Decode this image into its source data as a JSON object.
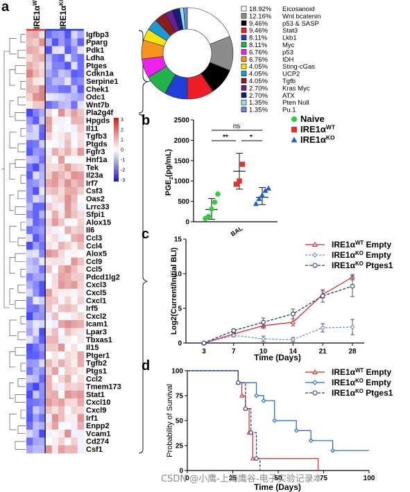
{
  "panels": {
    "a": "a",
    "b": "b",
    "c": "c",
    "d": "d"
  },
  "heatmap": {
    "group_labels": [
      "IRE1α",
      "IRE1α"
    ],
    "group_superscripts": [
      "WT",
      "KO"
    ],
    "genes": [
      "Igfbp3",
      "Pparg",
      "Pdk1",
      "Ldha",
      "Ptges",
      "Cdkn1a",
      "Serpine1",
      "Chek1",
      "Odc1",
      "Wnt7b",
      "Pla2g4f",
      "Hpgds",
      "Il11",
      "Tgfb3",
      "Ptgds",
      "Fgfr3",
      "Hnf1a",
      "Tek",
      "Il23a",
      "Irf7",
      "Csf3",
      "Oas2",
      "Lrrc33",
      "Sfpi1",
      "Alox15",
      "Il6",
      "Ccl3",
      "Ccl4",
      "Alox5",
      "Ccl9",
      "Ccl5",
      "Pdcd1lg2",
      "Cxcl3",
      "Cxcl5",
      "Cxcl1",
      "Irf5",
      "Cxcl2",
      "Icam1",
      "Lpar3",
      "Tbxas1",
      "Il15",
      "Ptger1",
      "Tgfb2",
      "Ptgs1",
      "Ccl2",
      "Tmem173",
      "Stat1",
      "Cxcl10",
      "Cxcl9",
      "Irf1",
      "Enpp2",
      "Vcam1",
      "Cd274",
      "Csf1"
    ],
    "colorbar_ticks": [
      "3",
      "2",
      "1",
      "0",
      "-1",
      "-2",
      "-3"
    ]
  },
  "chart_data": [
    {
      "type": "pie",
      "title": "",
      "style": "donut",
      "labels": [
        "Eicosanoid",
        "Wnt bcatenin",
        "p53 & SASP",
        "Stat3",
        "Lkb1",
        "Myc",
        "p53",
        "IDH",
        "Sting-cGas",
        "UCP2",
        "Tgfb",
        "Kras Myc",
        "ATX",
        "Pten Null",
        "Pu.1"
      ],
      "values": [
        18.92,
        12.16,
        9.46,
        9.46,
        8.11,
        8.11,
        6.76,
        6.76,
        4.05,
        4.05,
        4.05,
        2.7,
        2.7,
        1.35,
        1.35
      ],
      "value_labels": [
        "18.92%",
        "12.16%",
        "9.46%",
        "9.46%",
        "8.11%",
        "8.11%",
        "6.76%",
        "6.76%",
        "4.05%",
        "4.05%",
        "4.05%",
        "2.70%",
        "2.70%",
        "1.35%",
        "1.35%"
      ],
      "colors": [
        "#ffffff",
        "#8c8c8c",
        "#000000",
        "#ee1c25",
        "#1f3fd6",
        "#21b24b",
        "#ee22ee",
        "#f7941d",
        "#f5e50c",
        "#1d9ad6",
        "#8a1c1c",
        "#6b1f8f",
        "#1a1a7a",
        "#8ee6f0",
        "#6a8bd6"
      ]
    },
    {
      "type": "scatter",
      "title": "",
      "xlabel": "",
      "ylabel": "PGE2(pg/mL)",
      "ylabel_main": "PGE",
      "ylabel_sub": "2",
      "ylabel_rest": "(pg/mL)",
      "x_tick": "BAL",
      "ylim": [
        0,
        2500
      ],
      "yticks": [
        "0",
        "500",
        "1000",
        "1500",
        "2000",
        "2500"
      ],
      "yvals": [
        0,
        500,
        1000,
        1500,
        2000,
        2500
      ],
      "series": [
        {
          "name": "Naive",
          "name_sup": "",
          "color": "#2ecc40",
          "marker": "circle",
          "values": [
            80,
            130,
            310,
            480,
            680
          ],
          "mean": 300,
          "err_lo": 60,
          "err_hi": 570
        },
        {
          "name": "IRE1α",
          "name_sup": "WT",
          "color": "#e8312a",
          "marker": "square",
          "values": [
            920,
            1000,
            1410
          ],
          "mean": 1240,
          "err_lo": 800,
          "err_hi": 1680
        },
        {
          "name": "IRE1α",
          "name_sup": "KO",
          "color": "#1d5fd6",
          "marker": "triangle",
          "values": [
            440,
            560,
            650,
            760,
            820
          ],
          "mean": 600,
          "err_lo": 420,
          "err_hi": 840
        }
      ],
      "significance": [
        {
          "label": "ns"
        },
        {
          "label": "**"
        },
        {
          "label": "*"
        }
      ]
    },
    {
      "type": "line",
      "title": "",
      "xlabel": "Time (Days)",
      "ylabel": "Log2(Current/Initial BLI)",
      "x": [
        3,
        7,
        10,
        14,
        21,
        28
      ],
      "ylim": [
        0,
        15
      ],
      "yticks": [
        0,
        5,
        10,
        15
      ],
      "series": [
        {
          "name": "IRE1α",
          "name_sup": "WT",
          "suffix": " Empty",
          "color": "#d62728",
          "marker": "triangle",
          "dash": "",
          "values": [
            0,
            1.3,
            2.5,
            3.0,
            7.0,
            9.5
          ],
          "errors": [
            0,
            0.2,
            0.4,
            0.5,
            0.5,
            0.4
          ]
        },
        {
          "name": "IRE1α",
          "name_sup": "KO",
          "suffix": " Empty",
          "color": "#6a8bd6",
          "marker": "diamond",
          "dash": "3,2",
          "values": [
            0,
            1.1,
            0.6,
            0.5,
            2.2,
            2.3
          ],
          "errors": [
            0,
            0.2,
            0.4,
            0.3,
            0.6,
            1.1
          ]
        },
        {
          "name": "IRE1α",
          "name_sup": "KO",
          "suffix": " Ptges1",
          "color": "#1f3a7a",
          "marker": "circle",
          "dash": "4,2",
          "values": [
            0,
            1.8,
            3.0,
            4.2,
            6.8,
            8.2
          ],
          "errors": [
            0,
            0.2,
            0.6,
            0.7,
            0.9,
            1.5
          ]
        }
      ]
    },
    {
      "type": "line",
      "title": "",
      "xlabel": "Time (Days)",
      "ylabel": "Probability of Survival",
      "xlim": [
        0,
        100
      ],
      "xticks": [
        0,
        25,
        50,
        75,
        100
      ],
      "ylim": [
        0,
        100
      ],
      "yticks": [
        0,
        25,
        50,
        75,
        100
      ],
      "series": [
        {
          "name": "IRE1α",
          "name_sup": "WT",
          "suffix": " Empty",
          "color": "#d62728",
          "dash": "",
          "steps": [
            [
              0,
              100
            ],
            [
              28,
              100
            ],
            [
              28,
              88
            ],
            [
              30,
              88
            ],
            [
              30,
              75
            ],
            [
              32,
              75
            ],
            [
              32,
              62
            ],
            [
              34,
              62
            ],
            [
              34,
              38
            ],
            [
              36,
              38
            ],
            [
              36,
              12
            ],
            [
              72,
              12
            ],
            [
              72,
              0
            ]
          ]
        },
        {
          "name": "IRE1α",
          "name_sup": "KO",
          "suffix": " Empty",
          "color": "#1d5fd6",
          "dash": "",
          "steps": [
            [
              0,
              100
            ],
            [
              28,
              100
            ],
            [
              28,
              88
            ],
            [
              38,
              88
            ],
            [
              38,
              75
            ],
            [
              42,
              75
            ],
            [
              42,
              70
            ],
            [
              48,
              70
            ],
            [
              48,
              50
            ],
            [
              60,
              50
            ],
            [
              60,
              40
            ],
            [
              68,
              40
            ],
            [
              68,
              30
            ],
            [
              80,
              30
            ],
            [
              80,
              20
            ],
            [
              100,
              20
            ]
          ]
        },
        {
          "name": "IRE1α",
          "name_sup": "KO",
          "suffix": " Ptges1",
          "color": "#1f3a7a",
          "dash": "4,2",
          "steps": [
            [
              0,
              100
            ],
            [
              28,
              100
            ],
            [
              28,
              88
            ],
            [
              32,
              88
            ],
            [
              32,
              62
            ],
            [
              35,
              62
            ],
            [
              35,
              38
            ],
            [
              38,
              38
            ],
            [
              38,
              12
            ],
            [
              40,
              12
            ],
            [
              40,
              0
            ]
          ]
        }
      ]
    }
  ],
  "watermark": "CSDN @小鹰-上海鹰谷-电子实验记录本"
}
